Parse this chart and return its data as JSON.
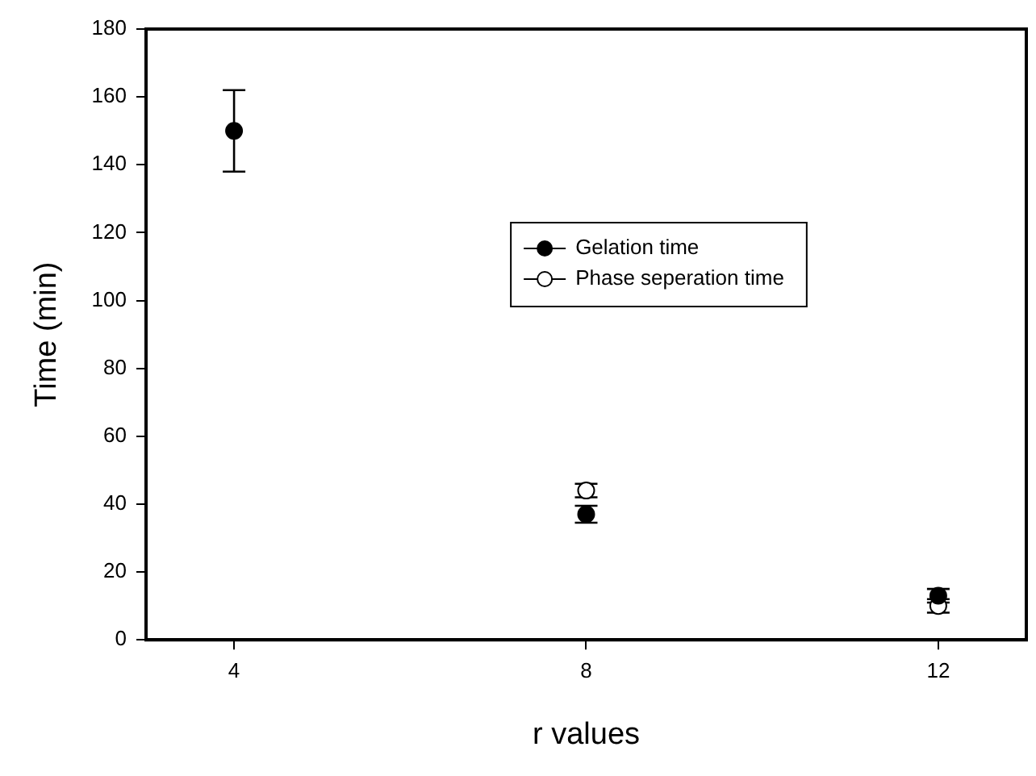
{
  "chart_data": {
    "type": "scatter",
    "xlabel": "r values",
    "ylabel": "Time (min)",
    "xlim": [
      3,
      13
    ],
    "xticks": [
      4,
      8,
      12
    ],
    "ylim": [
      0,
      180
    ],
    "yticks": [
      0,
      20,
      40,
      60,
      80,
      100,
      120,
      140,
      160,
      180
    ],
    "grid": false,
    "legend": "top",
    "marker": "circle",
    "series": [
      {
        "name": "Gelation time",
        "color": "#000000",
        "x": [
          4,
          8,
          12
        ],
        "values": [
          150,
          37,
          13
        ],
        "errors": [
          12,
          2.5,
          2
        ]
      },
      {
        "name": "Phase seperation time",
        "color": "#ffffff",
        "x": [
          8,
          12
        ],
        "values": [
          44,
          10
        ],
        "errors": [
          2,
          2
        ]
      }
    ]
  }
}
